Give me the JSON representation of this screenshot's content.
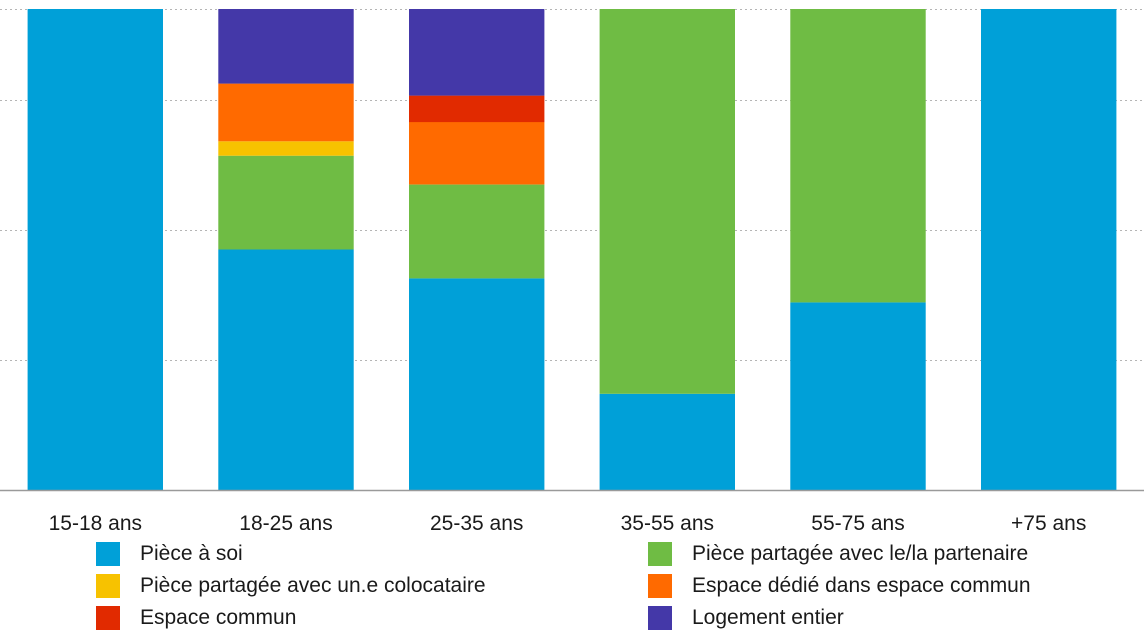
{
  "chart_data": {
    "type": "bar",
    "stacked": true,
    "categories": [
      "15-18 ans",
      "18-25 ans",
      "25-35 ans",
      "35-55 ans",
      "55-75 ans",
      "+75 ans"
    ],
    "series": [
      {
        "name": "Pièce à soi",
        "color": "#00a0d8",
        "values": [
          100,
          50,
          44,
          20,
          39,
          100
        ]
      },
      {
        "name": "Pièce partagée avec le/la partenaire",
        "color": "#6fbc44",
        "values": [
          0,
          19.5,
          19.5,
          80,
          61,
          0
        ]
      },
      {
        "name": "Pièce partagée avec un.e colocataire",
        "color": "#f7c200",
        "values": [
          0,
          3,
          0,
          0,
          0,
          0
        ]
      },
      {
        "name": "Espace dédié dans espace commun",
        "color": "#ff6a00",
        "values": [
          0,
          12,
          13,
          0,
          0,
          0
        ]
      },
      {
        "name": "Espace commun",
        "color": "#e12a00",
        "values": [
          0,
          0,
          5.5,
          0,
          0,
          0
        ]
      },
      {
        "name": "Logement entier",
        "color": "#4438a8",
        "values": [
          0,
          15.5,
          18,
          0,
          0,
          0
        ]
      }
    ],
    "ylim": [
      0,
      100
    ],
    "gridlines": [
      0,
      27,
      54,
      81,
      100
    ],
    "grid": true,
    "legend_position": "bottom",
    "title": "",
    "xlabel": "",
    "ylabel": ""
  }
}
